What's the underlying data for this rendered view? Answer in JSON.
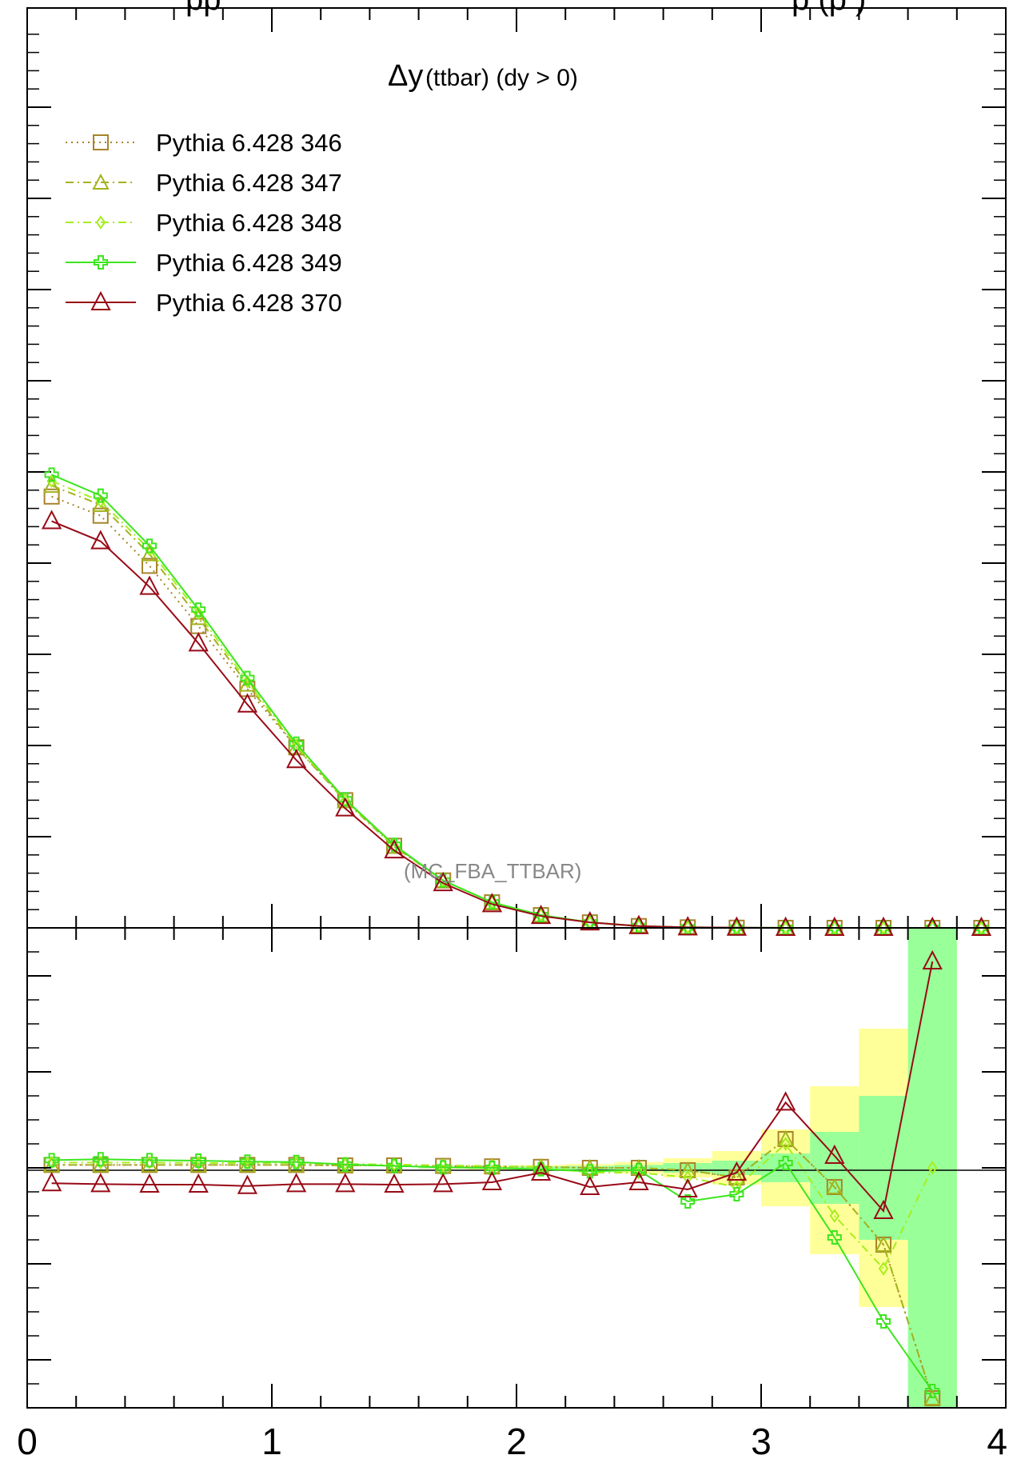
{
  "header": {
    "partial_title_left": "pp",
    "partial_title_right": "p (p          )"
  },
  "panel_title": {
    "symbol": "Δy",
    "text": "(ttbar) (dy > 0)"
  },
  "watermark": "(MC_FBA_TTBAR)",
  "x_tick_labels": [
    "0",
    "1",
    "2",
    "3",
    "4"
  ],
  "colors": {
    "s346": "#a8842a",
    "s347": "#a4b21e",
    "s348": "#a6ee1e",
    "s349": "#3ce61e",
    "s370": "#980a16",
    "band_inner": "#99ff99",
    "band_outer": "#ffff99"
  },
  "chart_data": [
    {
      "type": "line",
      "panel": "main",
      "title": "Δy (ttbar) (dy > 0)",
      "xlim": [
        0,
        4
      ],
      "ylim": [
        0,
        1.0
      ],
      "y_tick_labels_visible": false,
      "x": [
        0.1,
        0.3,
        0.5,
        0.7,
        0.9,
        1.1,
        1.3,
        1.5,
        1.7,
        1.9,
        2.1,
        2.3,
        2.5,
        2.7,
        2.9,
        3.1,
        3.3,
        3.5,
        3.7,
        3.9
      ],
      "series": [
        {
          "name": "Pythia 6.428 346",
          "key": "s346",
          "marker": "square",
          "dash": "dotted",
          "values": [
            0.473,
            0.452,
            0.397,
            0.331,
            0.262,
            0.198,
            0.14,
            0.09,
            0.052,
            0.028,
            0.014,
            0.006,
            0.002,
            0.0006,
            0.0002,
            5e-05,
            1e-05,
            0.0,
            0.0,
            0.0
          ]
        },
        {
          "name": "Pythia 6.428 347",
          "key": "s347",
          "marker": "triangle",
          "dash": "dashdot",
          "values": [
            0.485,
            0.464,
            0.41,
            0.34,
            0.267,
            0.198,
            0.139,
            0.089,
            0.052,
            0.028,
            0.014,
            0.006,
            0.002,
            0.0006,
            0.0002,
            5e-05,
            1e-05,
            0.0,
            0.0,
            0.0
          ]
        },
        {
          "name": "Pythia 6.428 348",
          "key": "s348",
          "marker": "diamond",
          "dash": "dashdot",
          "values": [
            0.49,
            0.468,
            0.415,
            0.345,
            0.27,
            0.2,
            0.14,
            0.09,
            0.052,
            0.028,
            0.014,
            0.006,
            0.002,
            0.0006,
            0.0002,
            5e-05,
            1e-05,
            0.0,
            0.0,
            0.0
          ]
        },
        {
          "name": "Pythia 6.428 349",
          "key": "s349",
          "marker": "plus",
          "dash": "solid",
          "values": [
            0.497,
            0.474,
            0.419,
            0.349,
            0.274,
            0.202,
            0.141,
            0.091,
            0.052,
            0.028,
            0.014,
            0.006,
            0.002,
            0.0006,
            0.0002,
            5e-05,
            1e-05,
            0.0,
            0.0,
            0.0
          ]
        },
        {
          "name": "Pythia 6.428 370",
          "key": "s370",
          "marker": "triangle-large",
          "dash": "solid",
          "values": [
            0.446,
            0.424,
            0.374,
            0.312,
            0.245,
            0.184,
            0.131,
            0.085,
            0.049,
            0.026,
            0.013,
            0.006,
            0.002,
            0.0006,
            0.0002,
            5e-05,
            1e-05,
            0.0,
            0.0,
            0.0
          ]
        }
      ]
    },
    {
      "type": "line",
      "panel": "ratio",
      "xlim": [
        0,
        4
      ],
      "ylim": [
        0.5,
        1.5
      ],
      "reference_line": 1.0,
      "y_tick_labels_visible": false,
      "x": [
        0.1,
        0.3,
        0.5,
        0.7,
        0.9,
        1.1,
        1.3,
        1.5,
        1.7,
        1.9,
        2.1,
        2.3,
        2.5,
        2.7,
        2.9,
        3.1,
        3.3,
        3.5,
        3.7
      ],
      "bands": {
        "edges": [
          0.0,
          0.2,
          0.4,
          0.6,
          0.8,
          1.0,
          1.2,
          1.4,
          1.6,
          1.8,
          2.0,
          2.2,
          2.4,
          2.6,
          2.8,
          3.0,
          3.2,
          3.4,
          3.6,
          3.8
        ],
        "inner_low": [
          1.0,
          1.0,
          1.0,
          1.0,
          1.0,
          1.0,
          1.0,
          1.0,
          0.999,
          0.998,
          0.997,
          0.996,
          0.994,
          0.99,
          0.985,
          0.97,
          0.925,
          0.85,
          0.46
        ],
        "inner_high": [
          1.0,
          1.0,
          1.0,
          1.0,
          1.0,
          1.0,
          1.0,
          1.0,
          1.001,
          1.002,
          1.003,
          1.004,
          1.006,
          1.01,
          1.015,
          1.03,
          1.075,
          1.15,
          1.55
        ],
        "outer_low": [
          1.0,
          1.0,
          1.0,
          1.0,
          1.0,
          1.0,
          1.0,
          1.0,
          0.998,
          0.996,
          0.994,
          0.992,
          0.988,
          0.98,
          0.965,
          0.92,
          0.82,
          0.71,
          0.46
        ],
        "outer_high": [
          1.0,
          1.0,
          1.0,
          1.0,
          1.0,
          1.0,
          1.0,
          1.0,
          1.002,
          1.004,
          1.006,
          1.008,
          1.012,
          1.02,
          1.035,
          1.08,
          1.17,
          1.29,
          1.86
        ]
      },
      "series": [
        {
          "name": "Pythia 6.428 346",
          "key": "s346",
          "values": [
            1.006,
            1.006,
            1.006,
            1.006,
            1.006,
            1.006,
            1.005,
            1.005,
            1.004,
            1.003,
            1.002,
            1.0,
            1.0,
            0.995,
            0.98,
            1.06,
            0.96,
            0.84,
            0.52
          ]
        },
        {
          "name": "Pythia 6.428 347",
          "key": "s347",
          "values": [
            1.006,
            1.006,
            1.006,
            1.006,
            1.006,
            1.006,
            1.005,
            1.005,
            1.004,
            1.003,
            1.002,
            1.0,
            1.0,
            0.995,
            0.98,
            1.06,
            0.96,
            0.84,
            0.52
          ]
        },
        {
          "name": "Pythia 6.428 348",
          "key": "s348",
          "values": [
            1.011,
            1.011,
            1.011,
            1.01,
            1.01,
            1.01,
            1.008,
            1.007,
            1.005,
            1.004,
            1.002,
            0.99,
            0.99,
            0.98,
            0.96,
            1.05,
            0.9,
            0.79,
            1.0
          ]
        },
        {
          "name": "Pythia 6.428 349",
          "key": "s349",
          "values": [
            1.016,
            1.018,
            1.016,
            1.015,
            1.013,
            1.012,
            1.007,
            1.004,
            1.001,
            1.0,
            0.997,
            0.993,
            0.995,
            0.93,
            0.945,
            1.01,
            0.855,
            0.68,
            0.535
          ]
        },
        {
          "name": "Pythia 6.428 370",
          "key": "s370",
          "values": [
            0.968,
            0.966,
            0.965,
            0.965,
            0.962,
            0.966,
            0.966,
            0.965,
            0.966,
            0.97,
            0.99,
            0.96,
            0.97,
            0.955,
            0.99,
            1.136,
            1.025,
            0.91,
            1.43
          ]
        }
      ]
    }
  ]
}
